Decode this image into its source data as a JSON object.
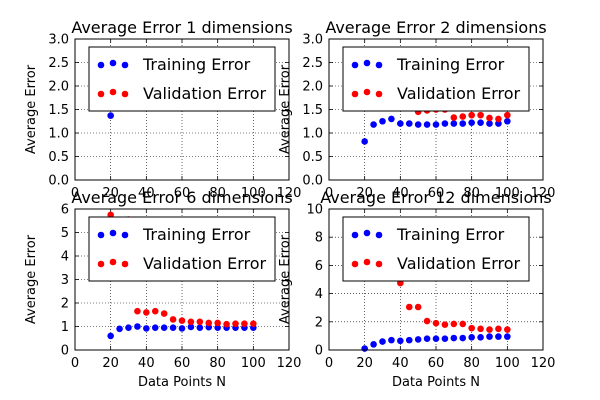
{
  "chart_data": [
    {
      "type": "scatter",
      "title": "Average Error 1 dimensions",
      "xlabel": "",
      "ylabel": "Average Error",
      "xlim": [
        0,
        120
      ],
      "ylim": [
        0.0,
        3.0
      ],
      "xticks": [
        "0",
        "20",
        "40",
        "60",
        "80",
        "100",
        "120"
      ],
      "yticks": [
        "0.0",
        "0.5",
        "1.0",
        "1.5",
        "2.0",
        "2.5",
        "3.0"
      ],
      "grid": true,
      "legend_position": "top",
      "series": [
        {
          "name": "Training Error",
          "color": "#0000ff",
          "x": [
            20,
            70,
            75,
            80,
            85,
            90,
            95
          ],
          "y": [
            1.37,
            1.62,
            1.55,
            1.58,
            1.59,
            1.58,
            1.57
          ]
        },
        {
          "name": "Validation Error",
          "color": "#ff0000",
          "x": [],
          "y": []
        }
      ]
    },
    {
      "type": "scatter",
      "title": "Average Error 2 dimensions",
      "xlabel": "",
      "ylabel": "Average Error",
      "xlim": [
        0,
        120
      ],
      "ylim": [
        0.0,
        3.0
      ],
      "xticks": [
        "0",
        "20",
        "40",
        "60",
        "80",
        "100",
        "120"
      ],
      "yticks": [
        "0.0",
        "0.5",
        "1.0",
        "1.5",
        "2.0",
        "2.5",
        "3.0"
      ],
      "grid": true,
      "legend_position": "top",
      "series": [
        {
          "name": "Training Error",
          "color": "#0000ff",
          "x": [
            20,
            25,
            30,
            35,
            40,
            45,
            50,
            55,
            60,
            65,
            70,
            75,
            80,
            85,
            90,
            95,
            100
          ],
          "y": [
            0.82,
            1.18,
            1.25,
            1.3,
            1.2,
            1.2,
            1.18,
            1.18,
            1.18,
            1.2,
            1.2,
            1.2,
            1.22,
            1.22,
            1.2,
            1.2,
            1.25
          ]
        },
        {
          "name": "Validation Error",
          "color": "#ff0000",
          "x": [
            20,
            40,
            45,
            50,
            55,
            60,
            65,
            70,
            75,
            80,
            85,
            90,
            95,
            100
          ],
          "y": [
            1.6,
            1.55,
            1.55,
            1.45,
            1.48,
            1.5,
            1.5,
            1.33,
            1.35,
            1.38,
            1.38,
            1.32,
            1.3,
            1.38
          ]
        }
      ]
    },
    {
      "type": "scatter",
      "title": "Average Error 6 dimensions",
      "xlabel": "Data Points N",
      "ylabel": "Average Error",
      "xlim": [
        0,
        120
      ],
      "ylim": [
        0,
        6
      ],
      "xticks": [
        "0",
        "20",
        "40",
        "60",
        "80",
        "100",
        "120"
      ],
      "yticks": [
        "0",
        "1",
        "2",
        "3",
        "4",
        "5",
        "6"
      ],
      "grid": true,
      "legend_position": "top",
      "series": [
        {
          "name": "Training Error",
          "color": "#0000ff",
          "x": [
            20,
            25,
            30,
            35,
            40,
            45,
            50,
            55,
            60,
            65,
            70,
            75,
            80,
            85,
            90,
            95,
            100
          ],
          "y": [
            0.6,
            0.9,
            0.95,
            1.0,
            0.92,
            0.95,
            0.95,
            0.95,
            0.92,
            0.98,
            0.95,
            0.97,
            0.95,
            0.95,
            0.95,
            0.95,
            0.95
          ]
        },
        {
          "name": "Validation Error",
          "color": "#ff0000",
          "x": [
            20,
            25,
            30,
            35,
            40,
            45,
            50,
            55,
            60,
            65,
            70,
            75,
            80,
            85,
            90,
            95,
            100
          ],
          "y": [
            5.75,
            3.3,
            5.55,
            1.65,
            1.6,
            1.65,
            1.55,
            1.3,
            1.25,
            1.2,
            1.2,
            1.15,
            1.15,
            1.1,
            1.12,
            1.12,
            1.12
          ]
        }
      ]
    },
    {
      "type": "scatter",
      "title": "Average Error 12 dimensions",
      "xlabel": "Data Points N",
      "ylabel": "Average Error",
      "xlim": [
        0,
        120
      ],
      "ylim": [
        0,
        10
      ],
      "xticks": [
        "0",
        "20",
        "40",
        "60",
        "80",
        "100",
        "120"
      ],
      "yticks": [
        "0",
        "2",
        "4",
        "6",
        "8",
        "10"
      ],
      "grid": true,
      "legend_position": "top",
      "series": [
        {
          "name": "Training Error",
          "color": "#0000ff",
          "x": [
            20,
            25,
            30,
            35,
            40,
            45,
            50,
            55,
            60,
            65,
            70,
            75,
            80,
            85,
            90,
            95,
            100
          ],
          "y": [
            0.1,
            0.4,
            0.6,
            0.7,
            0.65,
            0.7,
            0.75,
            0.8,
            0.8,
            0.8,
            0.85,
            0.85,
            0.9,
            0.9,
            0.95,
            0.95,
            0.95
          ]
        },
        {
          "name": "Validation Error",
          "color": "#ff0000",
          "x": [
            40,
            45,
            50,
            55,
            60,
            65,
            70,
            75,
            80,
            85,
            90,
            95,
            100
          ],
          "y": [
            4.75,
            3.05,
            3.05,
            2.05,
            1.9,
            1.8,
            1.85,
            1.85,
            1.55,
            1.5,
            1.45,
            1.5,
            1.45
          ]
        }
      ]
    }
  ]
}
